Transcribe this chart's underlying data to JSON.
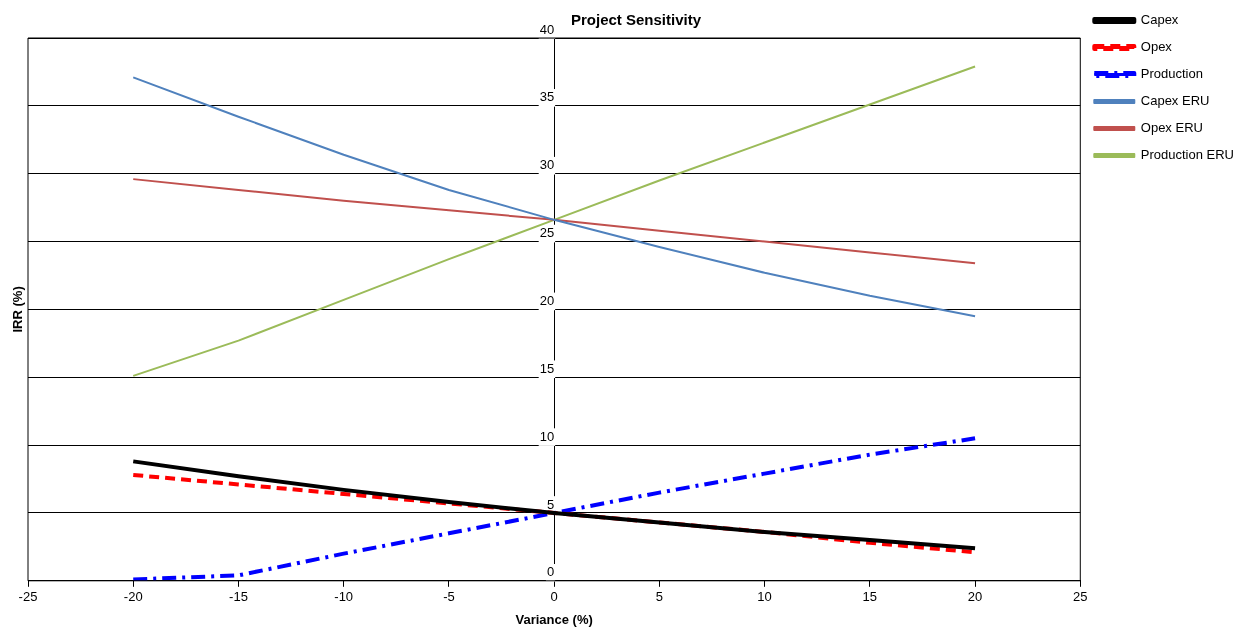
{
  "chart_data": {
    "type": "line",
    "title": "Project Sensitivity",
    "xlabel": "Variance (%)",
    "ylabel": "IRR (%)",
    "x": [
      -20,
      -15,
      -10,
      -5,
      0,
      5,
      10,
      15,
      20
    ],
    "xlim": [
      -25,
      25
    ],
    "xticks": [
      -25,
      -20,
      -15,
      -10,
      -5,
      0,
      5,
      10,
      15,
      20,
      25
    ],
    "ylim": [
      0,
      40
    ],
    "yticks": [
      0,
      5,
      10,
      15,
      20,
      25,
      30,
      35,
      40
    ],
    "grid": "y",
    "legend": "top right",
    "marker": "none",
    "series": [
      {
        "name": "Capex",
        "color": "#000000",
        "line_style": "solid",
        "values": [
          8.8,
          7.7,
          6.7,
          5.8,
          5.0,
          4.3,
          3.6,
          3.0,
          2.4
        ]
      },
      {
        "name": "Opex",
        "color": "#ff0000",
        "line_style": "dashed",
        "values": [
          7.8,
          7.1,
          6.4,
          5.7,
          5.0,
          4.3,
          3.6,
          2.8,
          2.1
        ]
      },
      {
        "name": "Production",
        "color": "#0000ff",
        "line_style": "dashdot",
        "values": [
          0.1,
          0.4,
          2.0,
          3.5,
          5.0,
          6.5,
          7.9,
          9.3,
          10.5
        ]
      },
      {
        "name": "Capex ERU",
        "color": "#4f81bd",
        "line_style": "solid",
        "values": [
          37.1,
          34.2,
          31.4,
          28.8,
          26.6,
          24.6,
          22.7,
          21.0,
          19.5
        ]
      },
      {
        "name": "Opex ERU",
        "color": "#c0504d",
        "line_style": "solid",
        "values": [
          29.6,
          28.8,
          28.0,
          27.3,
          26.6,
          25.8,
          25.0,
          24.2,
          23.4
        ]
      },
      {
        "name": "Production ERU",
        "color": "#9bbb59",
        "line_style": "solid",
        "values": [
          15.1,
          17.7,
          20.7,
          23.7,
          26.6,
          29.5,
          32.3,
          35.1,
          37.9
        ]
      }
    ]
  }
}
